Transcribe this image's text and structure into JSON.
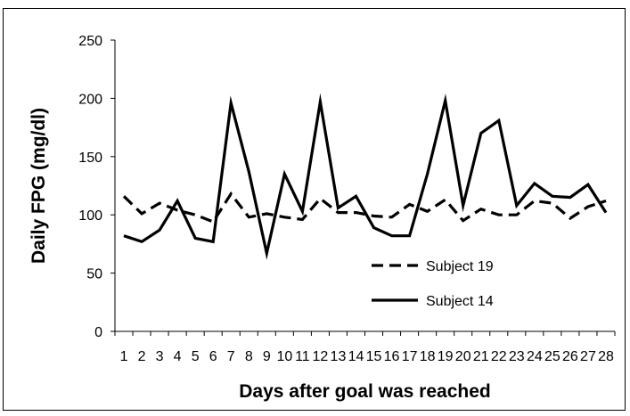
{
  "chart_data": {
    "type": "line",
    "title": "",
    "xlabel": "Days after goal was reached",
    "ylabel": "Daily FPG (mg/dl)",
    "x": [
      1,
      2,
      3,
      4,
      5,
      6,
      7,
      8,
      9,
      10,
      11,
      12,
      13,
      14,
      15,
      16,
      17,
      18,
      19,
      20,
      21,
      22,
      23,
      24,
      25,
      26,
      27,
      28
    ],
    "x_tick_labels": [
      "1",
      "2",
      "3",
      "4",
      "5",
      "6",
      "7",
      "8",
      "9",
      "10",
      "11",
      "12",
      "13",
      "14",
      "15",
      "16",
      "17",
      "18",
      "19",
      "20",
      "21",
      "22",
      "23",
      "24",
      "25",
      "26",
      "27",
      "28"
    ],
    "ylim": [
      0,
      250
    ],
    "y_ticks": [
      0,
      50,
      100,
      150,
      200,
      250
    ],
    "grid": false,
    "legend_position": "bottom-right",
    "series": [
      {
        "name": "Subject 19",
        "line_style": "dashed",
        "color": "#000000",
        "values": [
          116,
          101,
          110,
          104,
          100,
          94,
          118,
          98,
          101,
          98,
          96,
          114,
          102,
          102,
          99,
          98,
          109,
          103,
          113,
          95,
          105,
          100,
          100,
          112,
          110,
          97,
          107,
          112
        ]
      },
      {
        "name": "Subject 14",
        "line_style": "solid",
        "color": "#000000",
        "values": [
          82,
          77,
          87,
          112,
          80,
          77,
          196,
          137,
          67,
          135,
          103,
          197,
          106,
          116,
          89,
          82,
          82,
          135,
          198,
          108,
          170,
          181,
          108,
          127,
          116,
          115,
          126,
          102
        ]
      }
    ]
  }
}
